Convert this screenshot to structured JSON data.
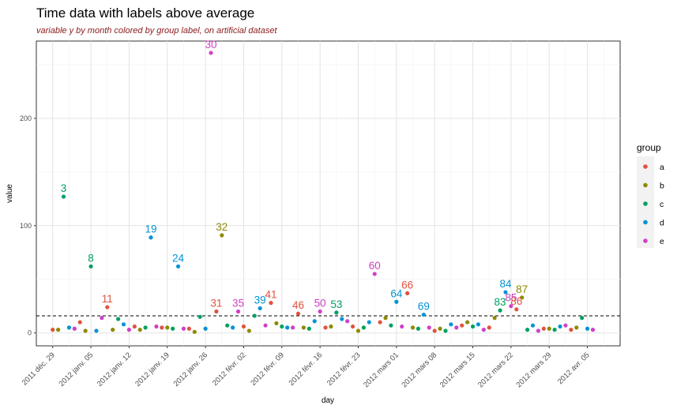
{
  "chart_data": {
    "type": "scatter",
    "title": "Time data with labels above average",
    "subtitle": "variable y by month colored by group label, on artificial dataset",
    "xlabel": "day",
    "ylabel": "value",
    "x_start": "2011-12-26",
    "x_range": [
      "2011-12-26",
      "2012-04-11"
    ],
    "ylim": [
      -12,
      272
    ],
    "y_ticks": [
      0,
      100,
      200
    ],
    "x_ticks": [
      {
        "date": "2011-12-29",
        "label": "2011 déc. 29"
      },
      {
        "date": "2012-01-05",
        "label": "2012 janv. 05"
      },
      {
        "date": "2012-01-12",
        "label": "2012 janv. 12"
      },
      {
        "date": "2012-01-19",
        "label": "2012 janv. 19"
      },
      {
        "date": "2012-01-26",
        "label": "2012 janv. 26"
      },
      {
        "date": "2012-02-02",
        "label": "2012 févr. 02"
      },
      {
        "date": "2012-02-09",
        "label": "2012 févr. 09"
      },
      {
        "date": "2012-02-16",
        "label": "2012 févr. 16"
      },
      {
        "date": "2012-02-23",
        "label": "2012 févr. 23"
      },
      {
        "date": "2012-03-01",
        "label": "2012 mars 01"
      },
      {
        "date": "2012-03-08",
        "label": "2012 mars 08"
      },
      {
        "date": "2012-03-15",
        "label": "2012 mars 15"
      },
      {
        "date": "2012-03-22",
        "label": "2012 mars 22"
      },
      {
        "date": "2012-03-29",
        "label": "2012 mars 29"
      },
      {
        "date": "2012-04-05",
        "label": "2012 avr. 05"
      }
    ],
    "average_line": 16,
    "grid": true,
    "legend": {
      "title": "group",
      "position": "right",
      "entries": [
        "a",
        "b",
        "c",
        "d",
        "e"
      ]
    },
    "colors": {
      "a": "#e0533f",
      "b": "#8e8a00",
      "c": "#00a060",
      "d": "#0094d4",
      "e": "#d040c8"
    },
    "points": [
      {
        "x": "2011-12-29",
        "y": 3,
        "group": "a"
      },
      {
        "x": "2011-12-30",
        "y": 3,
        "group": "b"
      },
      {
        "x": "2011-12-31",
        "y": 127,
        "group": "c",
        "label": "3"
      },
      {
        "x": "2012-01-01",
        "y": 5,
        "group": "d"
      },
      {
        "x": "2012-01-02",
        "y": 4,
        "group": "e"
      },
      {
        "x": "2012-01-03",
        "y": 10,
        "group": "a"
      },
      {
        "x": "2012-01-04",
        "y": 2,
        "group": "b"
      },
      {
        "x": "2012-01-05",
        "y": 62,
        "group": "c",
        "label": "8"
      },
      {
        "x": "2012-01-06",
        "y": 2,
        "group": "d"
      },
      {
        "x": "2012-01-07",
        "y": 14,
        "group": "e"
      },
      {
        "x": "2012-01-08",
        "y": 24,
        "group": "a",
        "label": "11"
      },
      {
        "x": "2012-01-09",
        "y": 3,
        "group": "b"
      },
      {
        "x": "2012-01-10",
        "y": 13,
        "group": "c"
      },
      {
        "x": "2012-01-11",
        "y": 8,
        "group": "d"
      },
      {
        "x": "2012-01-12",
        "y": 3,
        "group": "e"
      },
      {
        "x": "2012-01-13",
        "y": 6,
        "group": "a"
      },
      {
        "x": "2012-01-14",
        "y": 3,
        "group": "b"
      },
      {
        "x": "2012-01-15",
        "y": 5,
        "group": "c"
      },
      {
        "x": "2012-01-16",
        "y": 89,
        "group": "d",
        "label": "19"
      },
      {
        "x": "2012-01-17",
        "y": 6,
        "group": "e"
      },
      {
        "x": "2012-01-18",
        "y": 5,
        "group": "a"
      },
      {
        "x": "2012-01-19",
        "y": 5,
        "group": "b"
      },
      {
        "x": "2012-01-20",
        "y": 4,
        "group": "c"
      },
      {
        "x": "2012-01-21",
        "y": 62,
        "group": "d",
        "label": "24"
      },
      {
        "x": "2012-01-22",
        "y": 4,
        "group": "e"
      },
      {
        "x": "2012-01-23",
        "y": 4,
        "group": "a"
      },
      {
        "x": "2012-01-24",
        "y": 1,
        "group": "b"
      },
      {
        "x": "2012-01-25",
        "y": 15,
        "group": "c"
      },
      {
        "x": "2012-01-26",
        "y": 4,
        "group": "d"
      },
      {
        "x": "2012-01-27",
        "y": 261,
        "group": "e",
        "label": "30"
      },
      {
        "x": "2012-01-28",
        "y": 20,
        "group": "a",
        "label": "31"
      },
      {
        "x": "2012-01-29",
        "y": 91,
        "group": "b",
        "label": "32"
      },
      {
        "x": "2012-01-30",
        "y": 7,
        "group": "c"
      },
      {
        "x": "2012-01-31",
        "y": 5,
        "group": "d"
      },
      {
        "x": "2012-02-01",
        "y": 20,
        "group": "e",
        "label": "35"
      },
      {
        "x": "2012-02-02",
        "y": 6,
        "group": "a"
      },
      {
        "x": "2012-02-03",
        "y": 2,
        "group": "b"
      },
      {
        "x": "2012-02-04",
        "y": 16,
        "group": "c"
      },
      {
        "x": "2012-02-05",
        "y": 23,
        "group": "d",
        "label": "39"
      },
      {
        "x": "2012-02-06",
        "y": 7,
        "group": "e"
      },
      {
        "x": "2012-02-07",
        "y": 28,
        "group": "a",
        "label": "41"
      },
      {
        "x": "2012-02-08",
        "y": 9,
        "group": "b"
      },
      {
        "x": "2012-02-09",
        "y": 6,
        "group": "c"
      },
      {
        "x": "2012-02-10",
        "y": 5,
        "group": "d"
      },
      {
        "x": "2012-02-11",
        "y": 5,
        "group": "e"
      },
      {
        "x": "2012-02-12",
        "y": 18,
        "group": "a",
        "label": "46"
      },
      {
        "x": "2012-02-13",
        "y": 5,
        "group": "b"
      },
      {
        "x": "2012-02-14",
        "y": 4,
        "group": "c"
      },
      {
        "x": "2012-02-15",
        "y": 11,
        "group": "d"
      },
      {
        "x": "2012-02-16",
        "y": 20,
        "group": "e",
        "label": "50"
      },
      {
        "x": "2012-02-17",
        "y": 5,
        "group": "a"
      },
      {
        "x": "2012-02-18",
        "y": 6,
        "group": "b"
      },
      {
        "x": "2012-02-19",
        "y": 19,
        "group": "c",
        "label": "53"
      },
      {
        "x": "2012-02-20",
        "y": 13,
        "group": "d"
      },
      {
        "x": "2012-02-21",
        "y": 11,
        "group": "e"
      },
      {
        "x": "2012-02-22",
        "y": 6,
        "group": "a"
      },
      {
        "x": "2012-02-23",
        "y": 2,
        "group": "b"
      },
      {
        "x": "2012-02-24",
        "y": 5,
        "group": "c"
      },
      {
        "x": "2012-02-25",
        "y": 10,
        "group": "d"
      },
      {
        "x": "2012-02-26",
        "y": 55,
        "group": "e",
        "label": "60"
      },
      {
        "x": "2012-02-27",
        "y": 10,
        "group": "a"
      },
      {
        "x": "2012-02-28",
        "y": 14,
        "group": "b"
      },
      {
        "x": "2012-02-29",
        "y": 7,
        "group": "c"
      },
      {
        "x": "2012-03-01",
        "y": 29,
        "group": "d",
        "label": "64"
      },
      {
        "x": "2012-03-02",
        "y": 6,
        "group": "e"
      },
      {
        "x": "2012-03-03",
        "y": 37,
        "group": "a",
        "label": "66"
      },
      {
        "x": "2012-03-04",
        "y": 5,
        "group": "b"
      },
      {
        "x": "2012-03-05",
        "y": 4,
        "group": "c"
      },
      {
        "x": "2012-03-06",
        "y": 17,
        "group": "d",
        "label": "69"
      },
      {
        "x": "2012-03-07",
        "y": 5,
        "group": "e"
      },
      {
        "x": "2012-03-08",
        "y": 2,
        "group": "a"
      },
      {
        "x": "2012-03-09",
        "y": 4,
        "group": "b"
      },
      {
        "x": "2012-03-10",
        "y": 2,
        "group": "c"
      },
      {
        "x": "2012-03-11",
        "y": 8,
        "group": "d"
      },
      {
        "x": "2012-03-12",
        "y": 5,
        "group": "e"
      },
      {
        "x": "2012-03-13",
        "y": 7,
        "group": "a"
      },
      {
        "x": "2012-03-14",
        "y": 10,
        "group": "b"
      },
      {
        "x": "2012-03-15",
        "y": 6,
        "group": "c"
      },
      {
        "x": "2012-03-16",
        "y": 8,
        "group": "d"
      },
      {
        "x": "2012-03-17",
        "y": 3,
        "group": "e"
      },
      {
        "x": "2012-03-18",
        "y": 5,
        "group": "a"
      },
      {
        "x": "2012-03-19",
        "y": 14,
        "group": "b"
      },
      {
        "x": "2012-03-20",
        "y": 21,
        "group": "c",
        "label": "83"
      },
      {
        "x": "2012-03-21",
        "y": 38,
        "group": "d",
        "label": "84"
      },
      {
        "x": "2012-03-22",
        "y": 25,
        "group": "e",
        "label": "85"
      },
      {
        "x": "2012-03-23",
        "y": 22,
        "group": "a",
        "label": "86"
      },
      {
        "x": "2012-03-24",
        "y": 33,
        "group": "b",
        "label": "87"
      },
      {
        "x": "2012-03-25",
        "y": 3,
        "group": "c"
      },
      {
        "x": "2012-03-26",
        "y": 7,
        "group": "d"
      },
      {
        "x": "2012-03-27",
        "y": 2,
        "group": "e"
      },
      {
        "x": "2012-03-28",
        "y": 4,
        "group": "a"
      },
      {
        "x": "2012-03-29",
        "y": 4,
        "group": "b"
      },
      {
        "x": "2012-03-30",
        "y": 3,
        "group": "c"
      },
      {
        "x": "2012-03-31",
        "y": 6,
        "group": "d"
      },
      {
        "x": "2012-04-01",
        "y": 7,
        "group": "e"
      },
      {
        "x": "2012-04-02",
        "y": 3,
        "group": "a"
      },
      {
        "x": "2012-04-03",
        "y": 5,
        "group": "b"
      },
      {
        "x": "2012-04-04",
        "y": 14,
        "group": "c"
      },
      {
        "x": "2012-04-05",
        "y": 4,
        "group": "d"
      },
      {
        "x": "2012-04-06",
        "y": 3,
        "group": "e"
      }
    ]
  }
}
